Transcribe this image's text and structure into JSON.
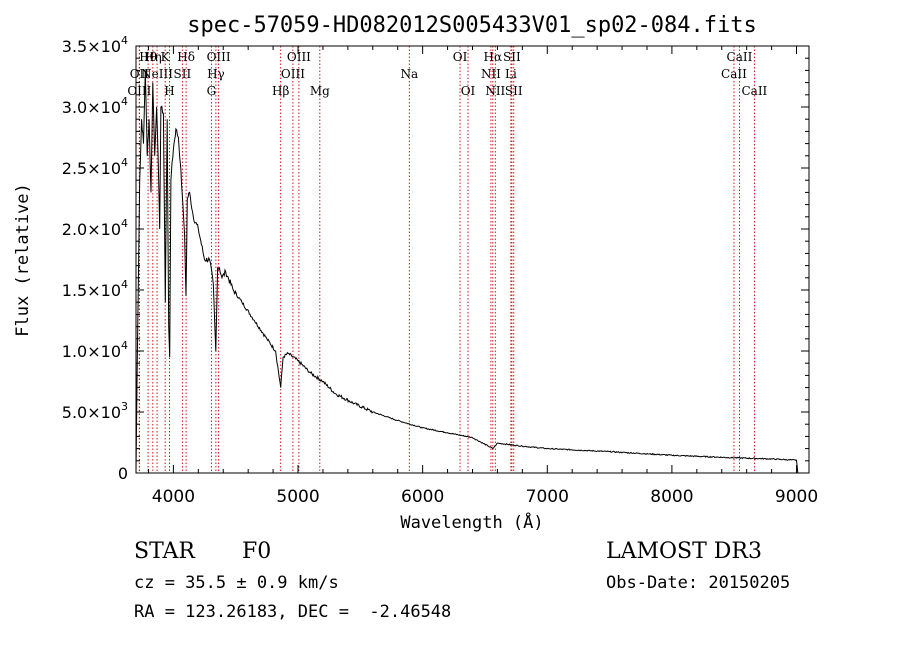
{
  "chart_data": {
    "type": "line",
    "title": "spec-57059-HD082012S005433V01_sp02-084.fits",
    "xlabel": "Wavelength (Å)",
    "ylabel": "Flux (relative)",
    "xlim": [
      3700,
      9100
    ],
    "ylim": [
      0,
      35000
    ],
    "x_ticks": [
      4000,
      5000,
      6000,
      7000,
      8000,
      9000
    ],
    "x_tick_labels": [
      "4000",
      "5000",
      "6000",
      "7000",
      "8000",
      "9000"
    ],
    "y_ticks": [
      0,
      5000,
      10000,
      15000,
      20000,
      25000,
      30000,
      35000
    ],
    "y_tick_labels": [
      {
        "mant": "0",
        "exp": ""
      },
      {
        "mant": "5.0×10",
        "exp": "3"
      },
      {
        "mant": "1.0×10",
        "exp": "4"
      },
      {
        "mant": "1.5×10",
        "exp": "4"
      },
      {
        "mant": "2.0×10",
        "exp": "4"
      },
      {
        "mant": "2.5×10",
        "exp": "4"
      },
      {
        "mant": "3.0×10",
        "exp": "4"
      },
      {
        "mant": "3.5×10",
        "exp": "4"
      }
    ],
    "series": [
      {
        "name": "spectrum",
        "x": [
          3700,
          3715,
          3730,
          3745,
          3760,
          3775,
          3790,
          3805,
          3820,
          3835,
          3850,
          3865,
          3880,
          3890,
          3900,
          3920,
          3935,
          3950,
          3962,
          3970,
          3980,
          3990,
          4005,
          4020,
          4040,
          4055,
          4070,
          4090,
          4101,
          4112,
          4130,
          4160,
          4200,
          4250,
          4290,
          4320,
          4340,
          4355,
          4370,
          4390,
          4420,
          4480,
          4550,
          4650,
          4750,
          4820,
          4861,
          4880,
          4920,
          5000,
          5100,
          5200,
          5300,
          5450,
          5600,
          5800,
          6000,
          6200,
          6400,
          6563,
          6600,
          6800,
          7000,
          7500,
          8000,
          8500,
          8800,
          9000,
          9010
        ],
        "values": [
          0,
          13000,
          24000,
          29000,
          27000,
          33000,
          26000,
          29000,
          23000,
          32000,
          26000,
          30000,
          25000,
          20000,
          30000,
          29500,
          14000,
          29000,
          12000,
          9500,
          24000,
          25500,
          27000,
          28200,
          27500,
          25500,
          23000,
          19500,
          14500,
          22500,
          23000,
          21000,
          20000,
          17500,
          17500,
          15500,
          10000,
          16800,
          16800,
          16000,
          16500,
          15000,
          14000,
          12500,
          11000,
          10000,
          7000,
          9500,
          9800,
          9200,
          8200,
          7500,
          6500,
          5700,
          5000,
          4300,
          3700,
          3300,
          2900,
          2000,
          2450,
          2200,
          2000,
          1750,
          1450,
          1250,
          1150,
          1050,
          0
        ]
      }
    ],
    "lines": [
      {
        "name": "Hθ",
        "x": 3797,
        "row": 0
      },
      {
        "name": "OII",
        "x": 3727,
        "row": 1
      },
      {
        "name": "OIII",
        "x": 3727,
        "row": 2
      },
      {
        "name": "Hη",
        "x": 3835,
        "row": 0
      },
      {
        "name": "NeIII",
        "x": 3869,
        "row": 1
      },
      {
        "name": "K",
        "x": 3934,
        "row": 0
      },
      {
        "name": "H",
        "x": 3969,
        "row": 2
      },
      {
        "name": "SII",
        "x": 4072,
        "row": 1
      },
      {
        "name": "Hδ",
        "x": 4102,
        "row": 0
      },
      {
        "name": "OIII",
        "x": 4363,
        "row": 0
      },
      {
        "name": "Hγ",
        "x": 4341,
        "row": 1
      },
      {
        "name": "G",
        "x": 4305,
        "row": 2
      },
      {
        "name": "OIII",
        "x": 5007,
        "row": 0
      },
      {
        "name": "OIII",
        "x": 4959,
        "row": 1
      },
      {
        "name": "Hβ",
        "x": 4861,
        "row": 2
      },
      {
        "name": "Mg",
        "x": 5175,
        "row": 2
      },
      {
        "name": "Na",
        "x": 5893,
        "row": 1
      },
      {
        "name": "OI",
        "x": 6300,
        "row": 0
      },
      {
        "name": "OI",
        "x": 6364,
        "row": 2
      },
      {
        "name": "Hα",
        "x": 6563,
        "row": 0
      },
      {
        "name": "NII",
        "x": 6548,
        "row": 1
      },
      {
        "name": "NII",
        "x": 6583,
        "row": 2
      },
      {
        "name": "SII",
        "x": 6716,
        "row": 0
      },
      {
        "name": "Li",
        "x": 6708,
        "row": 1
      },
      {
        "name": "SII",
        "x": 6731,
        "row": 2
      },
      {
        "name": "CaII",
        "x": 8542,
        "row": 0
      },
      {
        "name": "CaII",
        "x": 8498,
        "row": 1
      },
      {
        "name": "CaII",
        "x": 8662,
        "row": 2
      }
    ],
    "colors": {
      "line_marker": "#cc0000",
      "spectrum": "#000000",
      "axes": "#000000"
    }
  },
  "info": {
    "object_class": "STAR",
    "subclass": "F0",
    "cz": "cz = 35.5 ± 0.9 km/s",
    "coords": "RA = 123.26183, DEC =  -2.46548",
    "survey": "LAMOST DR3",
    "obs_date": "Obs-Date: 20150205"
  }
}
